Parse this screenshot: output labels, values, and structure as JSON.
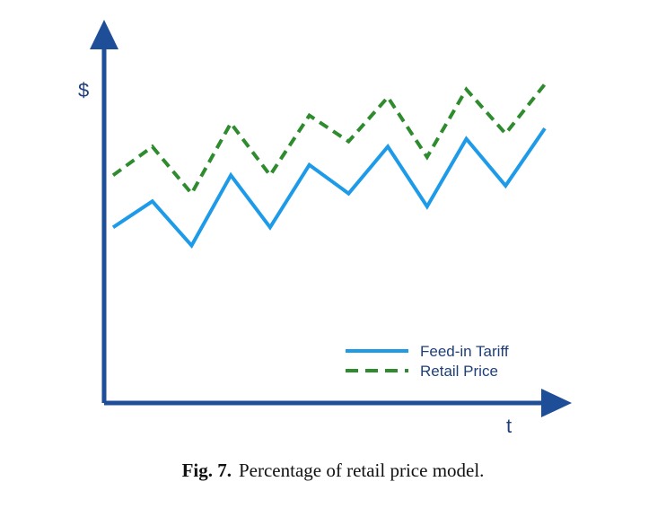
{
  "chart_data": {
    "type": "line",
    "xlabel": "t",
    "ylabel": "$",
    "x": [
      1,
      2,
      3,
      4,
      5,
      6,
      7,
      8,
      9,
      10,
      11,
      12
    ],
    "xlim": [
      1,
      12
    ],
    "ylim": [
      0,
      10
    ],
    "grid": false,
    "legend_position": "bottom-right",
    "series": [
      {
        "name": "Feed-in Tariff",
        "color": "#1e9be8",
        "style": "solid",
        "values": [
          4.3,
          5.3,
          3.6,
          6.3,
          4.3,
          6.7,
          5.6,
          7.4,
          5.1,
          7.7,
          5.9,
          8.1
        ]
      },
      {
        "name": "Retail Price",
        "color": "#2e8b2e",
        "style": "dashed",
        "values": [
          6.3,
          7.4,
          5.6,
          8.3,
          6.3,
          8.6,
          7.6,
          9.3,
          7.0,
          9.6,
          7.9,
          9.8
        ]
      }
    ]
  },
  "colors": {
    "axis": "#1f4e99"
  },
  "caption": {
    "label": "Fig. 7.",
    "text": "Percentage of retail price model."
  }
}
